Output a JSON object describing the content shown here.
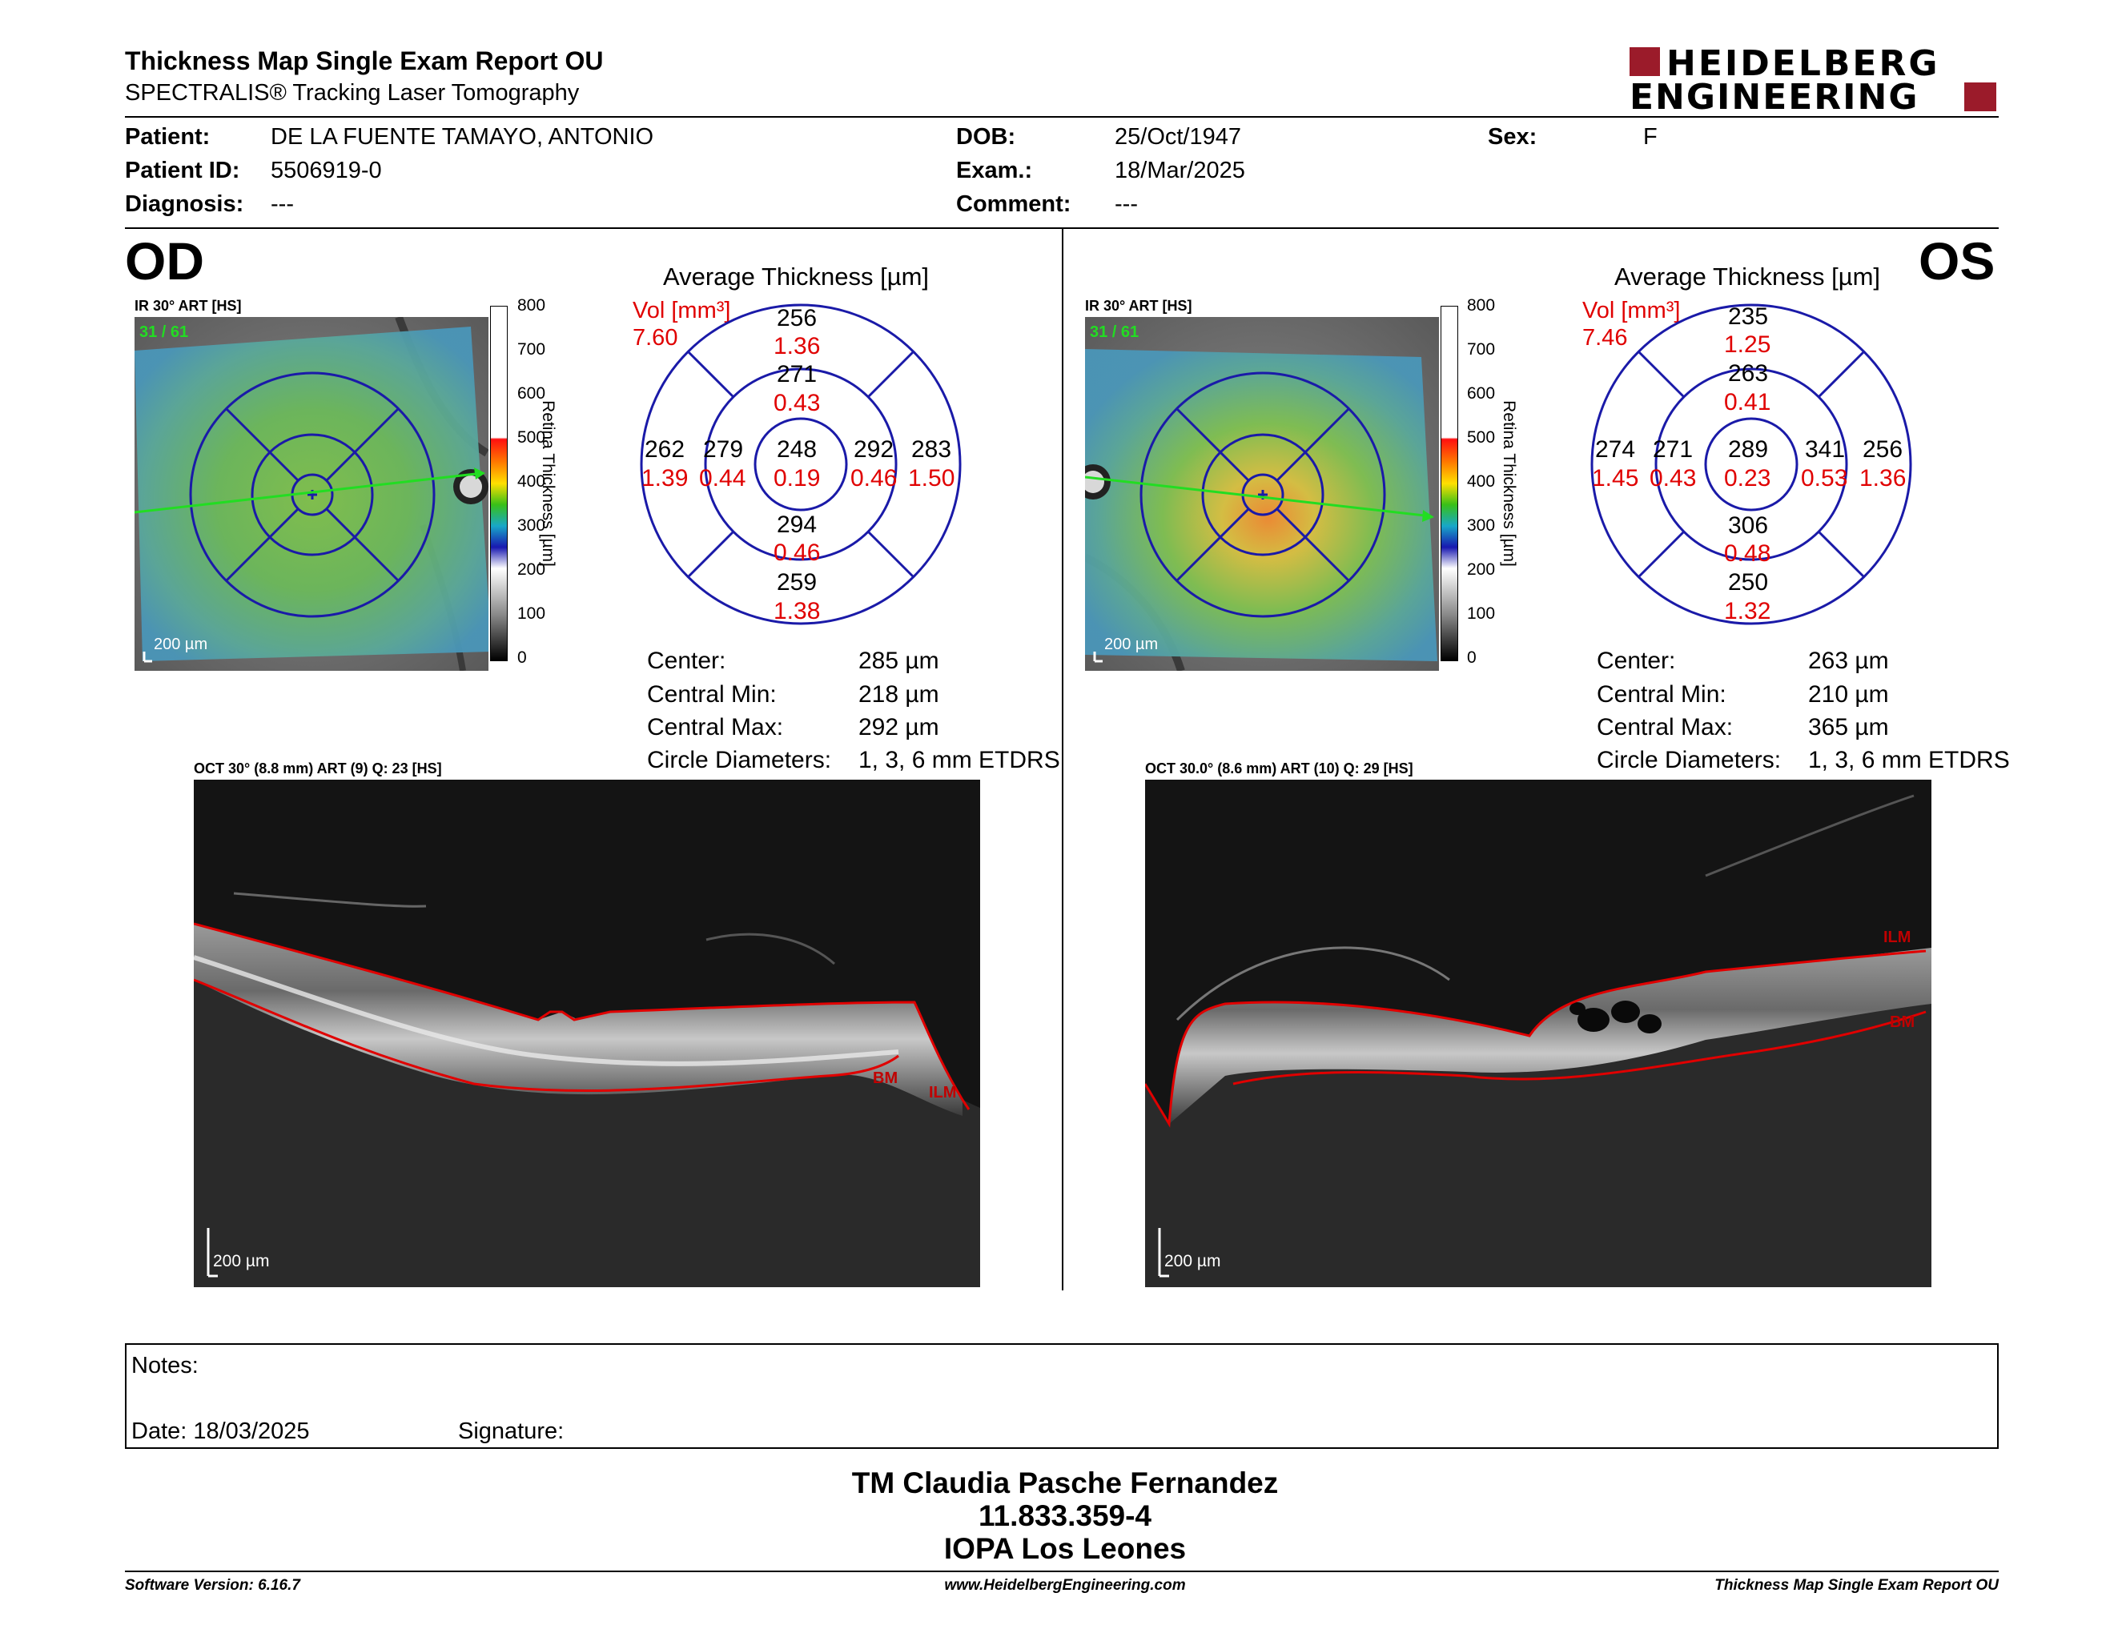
{
  "report": {
    "title": "Thickness Map Single Exam Report OU",
    "subtitle": "SPECTRALIS® Tracking Laser Tomography",
    "logo_line1": "HEIDELBERG",
    "logo_line2": "ENGINEERING"
  },
  "patient": {
    "patient_label": "Patient:",
    "patient_value": "DE LA FUENTE TAMAYO, ANTONIO",
    "id_label": "Patient ID:",
    "id_value": "5506919-0",
    "diagnosis_label": "Diagnosis:",
    "diagnosis_value": "---",
    "dob_label": "DOB:",
    "dob_value": "25/Oct/1947",
    "exam_label": "Exam.:",
    "exam_value": "18/Mar/2025",
    "comment_label": "Comment:",
    "comment_value": "---",
    "sex_label": "Sex:",
    "sex_value": "F"
  },
  "od": {
    "eye": "OD",
    "ir_label": "IR 30° ART [HS]",
    "frame_label": "31 / 61",
    "scale_label": "200 µm",
    "avg_title": "Average Thickness [µm]",
    "vol_label": "Vol [mm³]",
    "vol_total": "7.60",
    "sectors": {
      "outer_sup": {
        "t": "256",
        "v": "1.36"
      },
      "inner_sup": {
        "t": "271",
        "v": "0.43"
      },
      "outer_temp": {
        "t": "262",
        "v": "1.39"
      },
      "inner_temp": {
        "t": "279",
        "v": "0.44"
      },
      "center": {
        "t": "248",
        "v": "0.19"
      },
      "inner_nas": {
        "t": "292",
        "v": "0.46"
      },
      "outer_nas": {
        "t": "283",
        "v": "1.50"
      },
      "inner_inf": {
        "t": "294",
        "v": "0.46"
      },
      "outer_inf": {
        "t": "259",
        "v": "1.38"
      }
    },
    "stats": [
      {
        "label": "Center:",
        "value": "285 µm"
      },
      {
        "label": "Central Min:",
        "value": "218 µm"
      },
      {
        "label": "Central Max:",
        "value": "292 µm"
      },
      {
        "label": "Circle Diameters:",
        "value": "1, 3, 6 mm ETDRS"
      }
    ],
    "oct_label": "OCT 30° (8.8 mm) ART (9) Q: 23 [HS]",
    "oct_scale": "200 µm",
    "bm_tag": "BM",
    "ilm_tag": "ILM"
  },
  "os": {
    "eye": "OS",
    "ir_label": "IR 30° ART [HS]",
    "frame_label": "31 / 61",
    "scale_label": "200 µm",
    "avg_title": "Average Thickness [µm]",
    "vol_label": "Vol [mm³]",
    "vol_total": "7.46",
    "sectors": {
      "outer_sup": {
        "t": "235",
        "v": "1.25"
      },
      "inner_sup": {
        "t": "263",
        "v": "0.41"
      },
      "outer_temp": {
        "t": "274",
        "v": "1.45"
      },
      "inner_temp": {
        "t": "271",
        "v": "0.43"
      },
      "center": {
        "t": "289",
        "v": "0.23"
      },
      "inner_nas": {
        "t": "341",
        "v": "0.53"
      },
      "outer_nas": {
        "t": "256",
        "v": "1.36"
      },
      "inner_inf": {
        "t": "306",
        "v": "0.48"
      },
      "outer_inf": {
        "t": "250",
        "v": "1.32"
      }
    },
    "stats": [
      {
        "label": "Center:",
        "value": "263 µm"
      },
      {
        "label": "Central Min:",
        "value": "210 µm"
      },
      {
        "label": "Central Max:",
        "value": "365 µm"
      },
      {
        "label": "Circle Diameters:",
        "value": "1, 3, 6 mm ETDRS"
      }
    ],
    "oct_label": "OCT 30.0° (8.6 mm) ART (10) Q: 29 [HS]",
    "oct_scale": "200 µm",
    "bm_tag": "BM",
    "ilm_tag": "ILM"
  },
  "colorbar": {
    "ticks": [
      "800",
      "700",
      "600",
      "500",
      "400",
      "300",
      "200",
      "100",
      "0"
    ],
    "axis_label": "Retina Thickness [µm]"
  },
  "notes": {
    "notes_label": "Notes:",
    "date_label": "Date: 18/03/2025",
    "signature_label": "Signature:"
  },
  "signature_block": {
    "name": "TM Claudia Pasche Fernandez",
    "id": "11.833.359-4",
    "institution": "IOPA Los Leones"
  },
  "footer": {
    "software": "Software Version: 6.16.7",
    "website": "www.HeidelbergEngineering.com",
    "report": "Thickness Map Single Exam Report OU"
  },
  "colors": {
    "ring_blue": "#1a1aa8",
    "vol_red": "#e00000",
    "logo_red": "#9b1b2a",
    "scan_green": "#22dd22"
  }
}
